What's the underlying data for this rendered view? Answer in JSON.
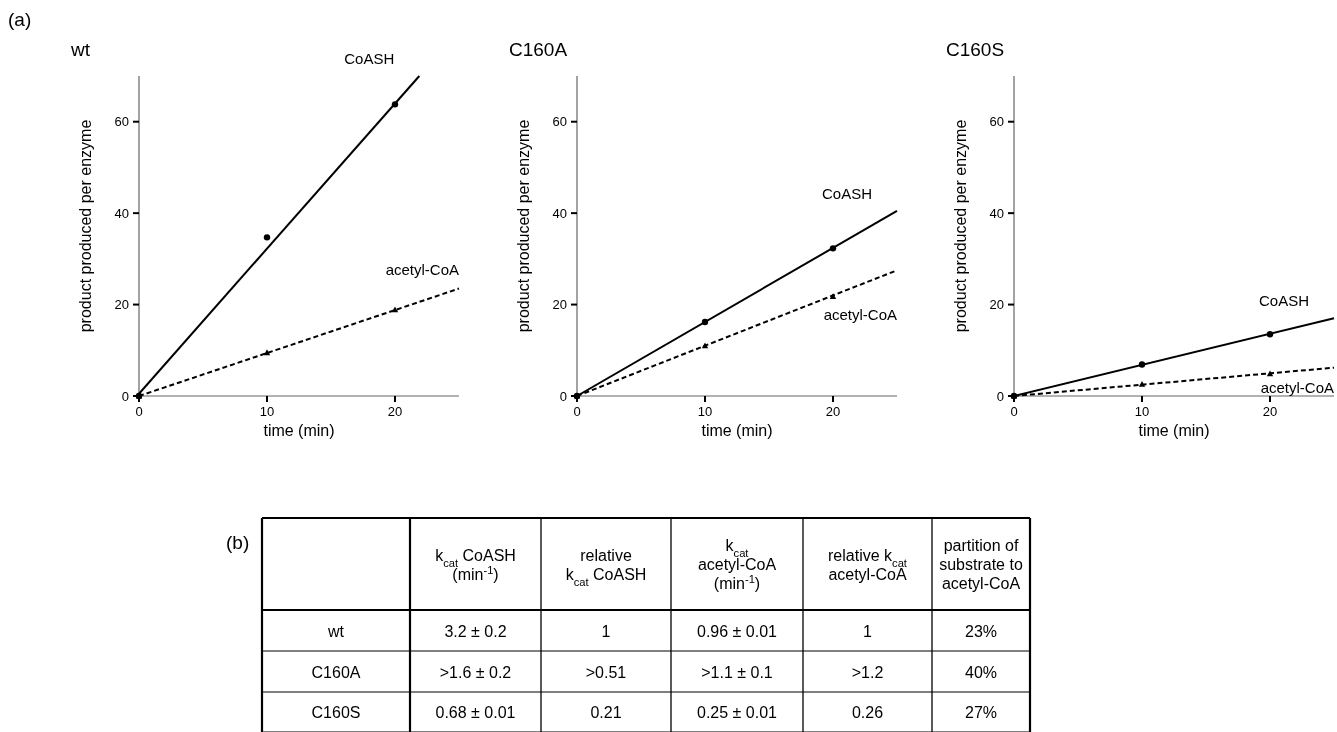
{
  "chart_data": [
    {
      "type": "scatter",
      "title": "wt",
      "annotations": [
        "(a)"
      ],
      "xlabel": "time (min)",
      "ylabel": "product produced per enzyme",
      "xlim": [
        0,
        25
      ],
      "ylim": [
        0,
        70
      ],
      "xticks": [
        0,
        10,
        20
      ],
      "yticks": [
        0,
        20,
        40,
        60
      ],
      "grid": false,
      "series": [
        {
          "type": "scatter",
          "color": "#000000",
          "marker": "circle",
          "x": [
            0,
            10,
            20
          ],
          "values": [
            0,
            34.7,
            63.8
          ]
        },
        {
          "type": "scatter",
          "color": "#000000",
          "marker": "triangle",
          "x": [
            0,
            10,
            20
          ],
          "values": [
            0,
            9.5,
            18.9
          ]
        },
        {
          "type": "line",
          "name": "CoASH",
          "color": "#000000",
          "line_style": "solid",
          "marker": "none",
          "x": [
            0,
            21.9
          ],
          "values": [
            0.5,
            70
          ]
        },
        {
          "type": "line",
          "name": "acetyl-CoA",
          "color": "#000000",
          "line_style": "dashed",
          "marker": "none",
          "x": [
            0,
            25
          ],
          "values": [
            0,
            23.5
          ]
        }
      ]
    },
    {
      "type": "scatter",
      "title": "C160A",
      "xlabel": "time (min)",
      "ylabel": "product produced per enzyme",
      "xlim": [
        0,
        25
      ],
      "ylim": [
        0,
        70
      ],
      "xticks": [
        0,
        10,
        20
      ],
      "yticks": [
        0,
        20,
        40,
        60
      ],
      "grid": false,
      "series": [
        {
          "type": "scatter",
          "color": "#000000",
          "marker": "circle",
          "x": [
            0,
            10,
            20
          ],
          "values": [
            0,
            16.2,
            32.3
          ]
        },
        {
          "type": "scatter",
          "color": "#000000",
          "marker": "triangle",
          "x": [
            0,
            10,
            20
          ],
          "values": [
            0,
            11,
            21.8
          ]
        },
        {
          "type": "line",
          "name": "CoASH",
          "color": "#000000",
          "line_style": "solid",
          "marker": "none",
          "x": [
            0,
            25
          ],
          "values": [
            0,
            40.5
          ]
        },
        {
          "type": "line",
          "name": "acetyl-CoA",
          "color": "#000000",
          "line_style": "dashed",
          "marker": "none",
          "x": [
            0,
            25
          ],
          "values": [
            0,
            27.5
          ]
        }
      ]
    },
    {
      "type": "scatter",
      "title": "C160S",
      "xlabel": "time (min)",
      "ylabel": "product produced per enzyme",
      "xlim": [
        0,
        25
      ],
      "ylim": [
        0,
        70
      ],
      "xticks": [
        0,
        10,
        20
      ],
      "yticks": [
        0,
        20,
        40,
        60
      ],
      "grid": false,
      "series": [
        {
          "type": "scatter",
          "color": "#000000",
          "marker": "circle",
          "x": [
            0,
            10,
            20
          ],
          "values": [
            0,
            6.9,
            13.5
          ]
        },
        {
          "type": "scatter",
          "color": "#000000",
          "marker": "triangle",
          "x": [
            0,
            10,
            20
          ],
          "values": [
            0,
            2.6,
            4.9
          ]
        },
        {
          "type": "line",
          "name": "CoASH",
          "color": "#000000",
          "line_style": "solid",
          "marker": "none",
          "x": [
            0,
            25
          ],
          "values": [
            0,
            17
          ]
        },
        {
          "type": "line",
          "name": "acetyl-CoA",
          "color": "#000000",
          "line_style": "dashed",
          "marker": "none",
          "x": [
            0,
            25
          ],
          "values": [
            0,
            6.2
          ]
        }
      ]
    },
    {
      "type": "other",
      "title": "(b)",
      "annotations": [
        "k$_{cat}$ CoASH\n(min$^{-1}$)",
        "relative\nk$_{cat}$ CoASH",
        "k$_{cat}$\nacetyl-CoA\n(min$^{-1}$)",
        "relative k$_{cat}$\nacetyl-CoA",
        "partition of\nsubstrate to\nacetyl-CoA",
        "wt",
        "3.2 ± 0.2",
        "1",
        "0.96 ± 0.01",
        "1",
        "23%",
        "C160A",
        ">1.6 ± 0.2",
        ">0.51",
        ">1.1 ± 0.1",
        ">1.2",
        "40%",
        "C160S",
        "0.68 ± 0.01",
        "0.21",
        "0.25 ± 0.01",
        "0.26",
        "27%"
      ]
    }
  ]
}
